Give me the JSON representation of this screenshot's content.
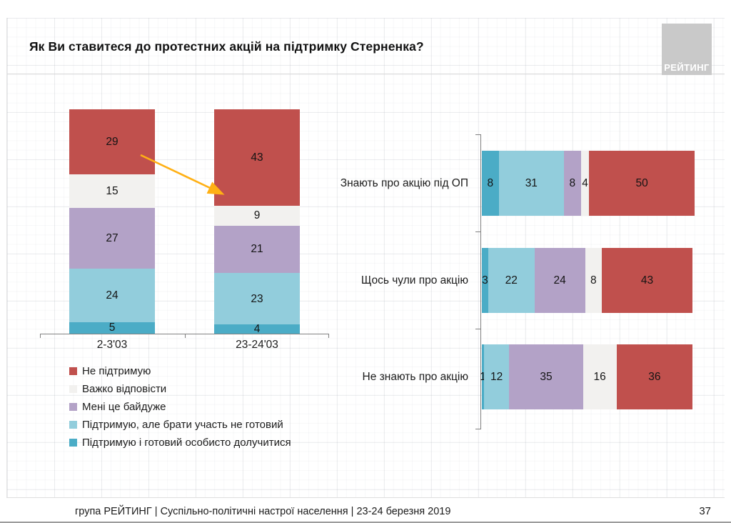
{
  "title": "Як Ви ставитеся до протестних акцій на підтримку Стерненка?",
  "logo": {
    "text": "РЕЙТИНГ"
  },
  "legend": [
    {
      "label": "Не підтримую",
      "color": "#C0504D"
    },
    {
      "label": "Важко відповісти",
      "color": "#F2F1EF"
    },
    {
      "label": "Мені це байдуже",
      "color": "#B3A2C7"
    },
    {
      "label": "Підтримую, але брати участь не готовий",
      "color": "#92CDDC"
    },
    {
      "label": "Підтримую і готовий особисто долучитися",
      "color": "#4BACC6"
    }
  ],
  "chart_data": [
    {
      "type": "bar",
      "variant": "stacked-column",
      "value_format": "percent",
      "categories": [
        "2-3'03",
        "23-24'03"
      ],
      "series_draw_order": "bottom-to-top",
      "series": [
        {
          "name": "Підтримую і готовий особисто долучитися",
          "color": "#4BACC6",
          "values": [
            5,
            4
          ]
        },
        {
          "name": "Підтримую, але брати участь не готовий",
          "color": "#92CDDC",
          "values": [
            24,
            23
          ]
        },
        {
          "name": "Мені це байдуже",
          "color": "#B3A2C7",
          "values": [
            27,
            21
          ]
        },
        {
          "name": "Важко відповісти",
          "color": "#F2F1EF",
          "values": [
            15,
            9
          ]
        },
        {
          "name": "Не підтримую",
          "color": "#C0504D",
          "values": [
            29,
            43
          ]
        }
      ],
      "annotation_arrow": {
        "from": "29 @ 2-3'03",
        "to": "43 @ 23-24'03",
        "color": "#FFB014"
      }
    },
    {
      "type": "bar",
      "variant": "stacked-horizontal",
      "value_format": "percent",
      "categories": [
        "Знають про акцію під ОП",
        "Щось чули про акцію",
        "Не знають про акцію"
      ],
      "series_draw_order": "left-to-right",
      "series": [
        {
          "name": "Підтримую і готовий особисто долучитися",
          "color": "#4BACC6",
          "values": [
            8,
            3,
            1
          ]
        },
        {
          "name": "Підтримую, але брати участь не готовий",
          "color": "#92CDDC",
          "values": [
            31,
            22,
            12
          ]
        },
        {
          "name": "Мені це байдуже",
          "color": "#B3A2C7",
          "values": [
            8,
            24,
            35
          ]
        },
        {
          "name": "Важко відповісти",
          "color": "#F2F1EF",
          "values": [
            4,
            8,
            16
          ]
        },
        {
          "name": "Не підтримую",
          "color": "#C0504D",
          "values": [
            50,
            43,
            36
          ]
        }
      ]
    }
  ],
  "footer": {
    "source": "група РЕЙТИНГ | Суспільно-політичні настрої населення  | 23-24 березня 2019",
    "page": "37"
  }
}
